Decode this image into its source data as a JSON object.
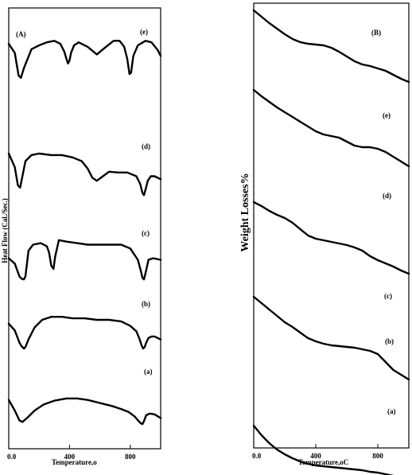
{
  "chart_data": [
    {
      "type": "line",
      "panel_label": "(A)",
      "xlabel": "Temperature,o",
      "ylabel": "Heat Flow (Cal./Sec.)",
      "xlim": [
        0,
        1000
      ],
      "xticks": [
        "0.0",
        "400",
        "800"
      ],
      "grid": false,
      "stacked_offset_curves": true,
      "series": [
        {
          "name": "(e)",
          "x": [
            0,
            40,
            65,
            80,
            100,
            150,
            200,
            250,
            300,
            340,
            365,
            380,
            390,
            400,
            410,
            430,
            460,
            520,
            580,
            640,
            690,
            730,
            760,
            780,
            795,
            805,
            820,
            850,
            900,
            940,
            980,
            1000
          ],
          "y": [
            82,
            70,
            40,
            37,
            50,
            75,
            80,
            84,
            86,
            82,
            72,
            62,
            56,
            60,
            70,
            80,
            84,
            78,
            68,
            78,
            86,
            86,
            78,
            62,
            42,
            44,
            66,
            80,
            86,
            84,
            74,
            66
          ]
        },
        {
          "name": "(d)",
          "x": [
            0,
            40,
            60,
            75,
            90,
            110,
            150,
            200,
            280,
            350,
            420,
            480,
            520,
            550,
            580,
            620,
            660,
            720,
            780,
            840,
            865,
            880,
            890,
            900,
            915,
            935,
            960,
            1000
          ],
          "y": [
            60,
            42,
            18,
            15,
            30,
            50,
            58,
            60,
            58,
            58,
            55,
            50,
            40,
            28,
            24,
            30,
            36,
            35,
            35,
            30,
            20,
            8,
            5,
            12,
            24,
            30,
            30,
            26
          ]
        },
        {
          "name": "(c)",
          "x": [
            0,
            40,
            70,
            85,
            100,
            110,
            130,
            160,
            210,
            250,
            265,
            280,
            295,
            305,
            330,
            380,
            450,
            520,
            600,
            680,
            740,
            800,
            850,
            870,
            880,
            890,
            900,
            920,
            950,
            1000
          ],
          "y": [
            32,
            25,
            8,
            5,
            4,
            8,
            42,
            50,
            52,
            48,
            40,
            22,
            18,
            34,
            56,
            54,
            52,
            50,
            50,
            50,
            50,
            45,
            30,
            15,
            6,
            4,
            12,
            30,
            32,
            30
          ]
        },
        {
          "name": "(b)",
          "x": [
            0,
            40,
            70,
            85,
            100,
            110,
            130,
            170,
            220,
            280,
            350,
            420,
            500,
            580,
            660,
            740,
            800,
            840,
            860,
            875,
            885,
            895,
            905,
            920,
            940,
            960,
            1000
          ],
          "y": [
            35,
            26,
            10,
            5,
            2,
            4,
            14,
            30,
            40,
            44,
            44,
            42,
            42,
            40,
            40,
            38,
            32,
            25,
            15,
            6,
            2,
            4,
            10,
            16,
            18,
            18,
            14
          ]
        },
        {
          "name": "(a)",
          "x": [
            0,
            40,
            70,
            90,
            120,
            170,
            230,
            300,
            380,
            450,
            520,
            600,
            680,
            740,
            790,
            830,
            855,
            870,
            880,
            890,
            905,
            930,
            960,
            1000
          ],
          "y": [
            34,
            20,
            7,
            5,
            10,
            20,
            28,
            33,
            36,
            36,
            34,
            30,
            26,
            22,
            18,
            12,
            6,
            3,
            2,
            6,
            14,
            16,
            15,
            10
          ]
        }
      ]
    },
    {
      "type": "line",
      "panel_label": "(B)",
      "xlabel": "Temperature,oC",
      "ylabel": "Weight Losses%",
      "xlim": [
        0,
        1000
      ],
      "xticks": [
        "0.0",
        "400",
        "800"
      ],
      "grid": false,
      "stacked_offset_curves": true,
      "series": [
        {
          "name": "(e)",
          "x": [
            0,
            50,
            100,
            150,
            200,
            250,
            300,
            350,
            400,
            450,
            500,
            550,
            600,
            650,
            700,
            750,
            800,
            850,
            900,
            950,
            1000
          ],
          "y": [
            100,
            92,
            84,
            77,
            70,
            64,
            60,
            58,
            57,
            56,
            53,
            48,
            42,
            36,
            32,
            30,
            27,
            24,
            19,
            14,
            10
          ]
        },
        {
          "name": "(d)",
          "x": [
            0,
            50,
            100,
            150,
            200,
            250,
            300,
            350,
            400,
            450,
            500,
            550,
            600,
            650,
            700,
            750,
            800,
            850,
            900,
            950,
            1000
          ],
          "y": [
            78,
            70,
            63,
            56,
            50,
            44,
            38,
            32,
            26,
            22,
            20,
            18,
            13,
            8,
            6,
            6,
            4,
            0,
            -6,
            -12,
            -18
          ]
        },
        {
          "name": "(c)",
          "x": [
            0,
            50,
            100,
            150,
            200,
            250,
            300,
            350,
            400,
            450,
            500,
            550,
            600,
            650,
            700,
            750,
            800,
            850,
            900,
            950,
            1000
          ],
          "y": [
            46,
            41,
            35,
            30,
            26,
            20,
            12,
            4,
            0,
            -2,
            -4,
            -6,
            -8,
            -11,
            -15,
            -22,
            -27,
            -31,
            -35,
            -40,
            -44
          ]
        },
        {
          "name": "(b)",
          "x": [
            0,
            50,
            100,
            150,
            200,
            250,
            300,
            350,
            400,
            450,
            500,
            550,
            600,
            650,
            700,
            750,
            800,
            850,
            900,
            950,
            1000
          ],
          "y": [
            22,
            14,
            6,
            -2,
            -10,
            -16,
            -23,
            -30,
            -34,
            -37,
            -39,
            -40,
            -41,
            -42,
            -44,
            -46,
            -50,
            -60,
            -70,
            -76,
            -82
          ]
        },
        {
          "name": "(a)",
          "x": [
            0,
            50,
            100,
            150,
            200,
            250,
            300,
            350,
            400,
            450,
            500,
            550,
            600,
            650,
            700,
            750,
            800,
            850,
            900,
            950,
            1000
          ],
          "y": [
            -14,
            -26,
            -36,
            -44,
            -50,
            -55,
            -59,
            -62,
            -64,
            -65,
            -66,
            -67,
            -68,
            -69,
            -70,
            -72,
            -73,
            -75,
            -77,
            -80,
            -83
          ]
        }
      ]
    }
  ]
}
